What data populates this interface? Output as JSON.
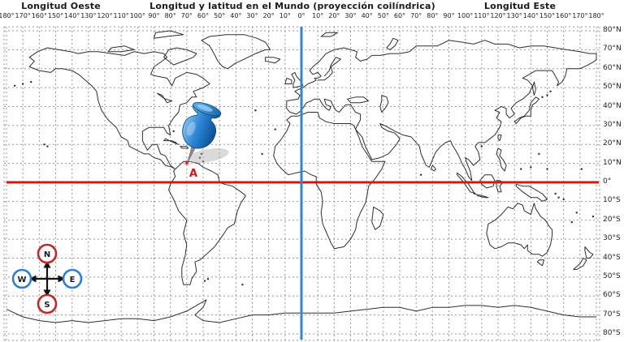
{
  "header": {
    "left_title": "Longitud Oeste",
    "center_title": "Longitud y latitud en el Mundo (proyección coilíndrica)",
    "right_title": "Longitud Este"
  },
  "axis": {
    "longitude_labels": [
      "180°",
      "170°",
      "160°",
      "150°",
      "140°",
      "130°",
      "120°",
      "110°",
      "100°",
      "90°",
      "80°",
      "70°",
      "60°",
      "50°",
      "40°",
      "30°",
      "20°",
      "10°",
      "0°",
      "10°",
      "20°",
      "30°",
      "40°",
      "50°",
      "60°",
      "70°",
      "80°",
      "90°",
      "100°",
      "110°",
      "120°",
      "130°",
      "140°",
      "150°",
      "160°",
      "170°",
      "180°"
    ],
    "latitude_labels": [
      "80°N",
      "70°N",
      "60°N",
      "50°N",
      "40°N",
      "30°N",
      "20°N",
      "10°N",
      "0°",
      "10°S",
      "20°S",
      "30°S",
      "40°S",
      "50°S",
      "60°S",
      "70°S",
      "80°S"
    ]
  },
  "lines": {
    "equator_color": "#d01818",
    "meridian_color": "#2e86d5",
    "grid_color": "#999999",
    "coast_color": "#2e2e2e"
  },
  "marker": {
    "label": "A",
    "star": "✶",
    "color": "#dd1111"
  },
  "compass": {
    "n": "N",
    "s": "S",
    "e": "E",
    "w": "W",
    "ns_ring_color": "#c42727",
    "ew_ring_color": "#2d7fd3",
    "arrow_color": "#111111",
    "letter_color": "#1b1b1b"
  },
  "pin": {
    "color": "#1f6fc0"
  }
}
